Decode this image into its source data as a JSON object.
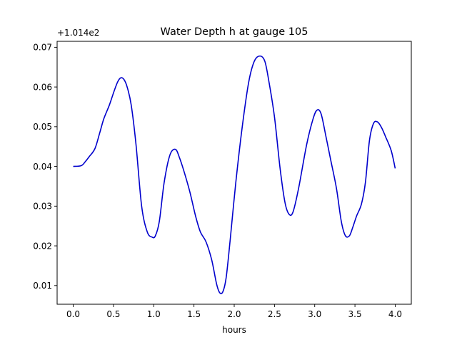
{
  "chart_data": {
    "type": "line",
    "title": "Water Depth h at gauge 105",
    "xlabel": "hours",
    "ylabel": "",
    "y_offset_label": "+1.014e2",
    "xlim": [
      -0.2,
      4.2
    ],
    "ylim": [
      0.0053,
      0.0715
    ],
    "x_ticks": [
      0.0,
      0.5,
      1.0,
      1.5,
      2.0,
      2.5,
      3.0,
      3.5,
      4.0
    ],
    "x_tick_labels": [
      "0.0",
      "0.5",
      "1.0",
      "1.5",
      "2.0",
      "2.5",
      "3.0",
      "3.5",
      "4.0"
    ],
    "y_ticks": [
      0.01,
      0.02,
      0.03,
      0.04,
      0.05,
      0.06,
      0.07
    ],
    "y_tick_labels": [
      "0.01",
      "0.02",
      "0.03",
      "0.04",
      "0.05",
      "0.06",
      "0.07"
    ],
    "grid": false,
    "line_color": "#0000cc",
    "series": [
      {
        "x": [
          0.0,
          0.1,
          0.15,
          0.2,
          0.27,
          0.33,
          0.38,
          0.45,
          0.5,
          0.55,
          0.59,
          0.63,
          0.67,
          0.72,
          0.78,
          0.85,
          0.92,
          0.98,
          1.02,
          1.07,
          1.13,
          1.2,
          1.27,
          1.32,
          1.38,
          1.45,
          1.52,
          1.58,
          1.65,
          1.72,
          1.78,
          1.82,
          1.86,
          1.9,
          1.95,
          2.02,
          2.1,
          2.18,
          2.25,
          2.32,
          2.38,
          2.43,
          2.5,
          2.57,
          2.63,
          2.68,
          2.73,
          2.8,
          2.9,
          2.98,
          3.03,
          3.08,
          3.14,
          3.2,
          3.27,
          3.33,
          3.38,
          3.43,
          3.47,
          3.52,
          3.58,
          3.63,
          3.68,
          3.73,
          3.78,
          3.83,
          3.88,
          3.95,
          4.0
        ],
        "y": [
          0.04,
          0.0402,
          0.0412,
          0.0425,
          0.0445,
          0.0485,
          0.052,
          0.0555,
          0.0585,
          0.0612,
          0.0623,
          0.0619,
          0.06,
          0.0555,
          0.0455,
          0.03,
          0.0235,
          0.0222,
          0.0225,
          0.0262,
          0.036,
          0.0428,
          0.0443,
          0.0422,
          0.0385,
          0.0335,
          0.0275,
          0.0235,
          0.021,
          0.0165,
          0.0105,
          0.0082,
          0.0085,
          0.012,
          0.0215,
          0.036,
          0.05,
          0.0612,
          0.0665,
          0.0678,
          0.0665,
          0.0615,
          0.0525,
          0.0395,
          0.031,
          0.028,
          0.0285,
          0.0345,
          0.0455,
          0.052,
          0.0542,
          0.0532,
          0.0475,
          0.0415,
          0.0345,
          0.0262,
          0.0226,
          0.0225,
          0.0245,
          0.0275,
          0.0305,
          0.036,
          0.0465,
          0.0508,
          0.0512,
          0.0498,
          0.0475,
          0.044,
          0.0395
        ]
      }
    ]
  }
}
